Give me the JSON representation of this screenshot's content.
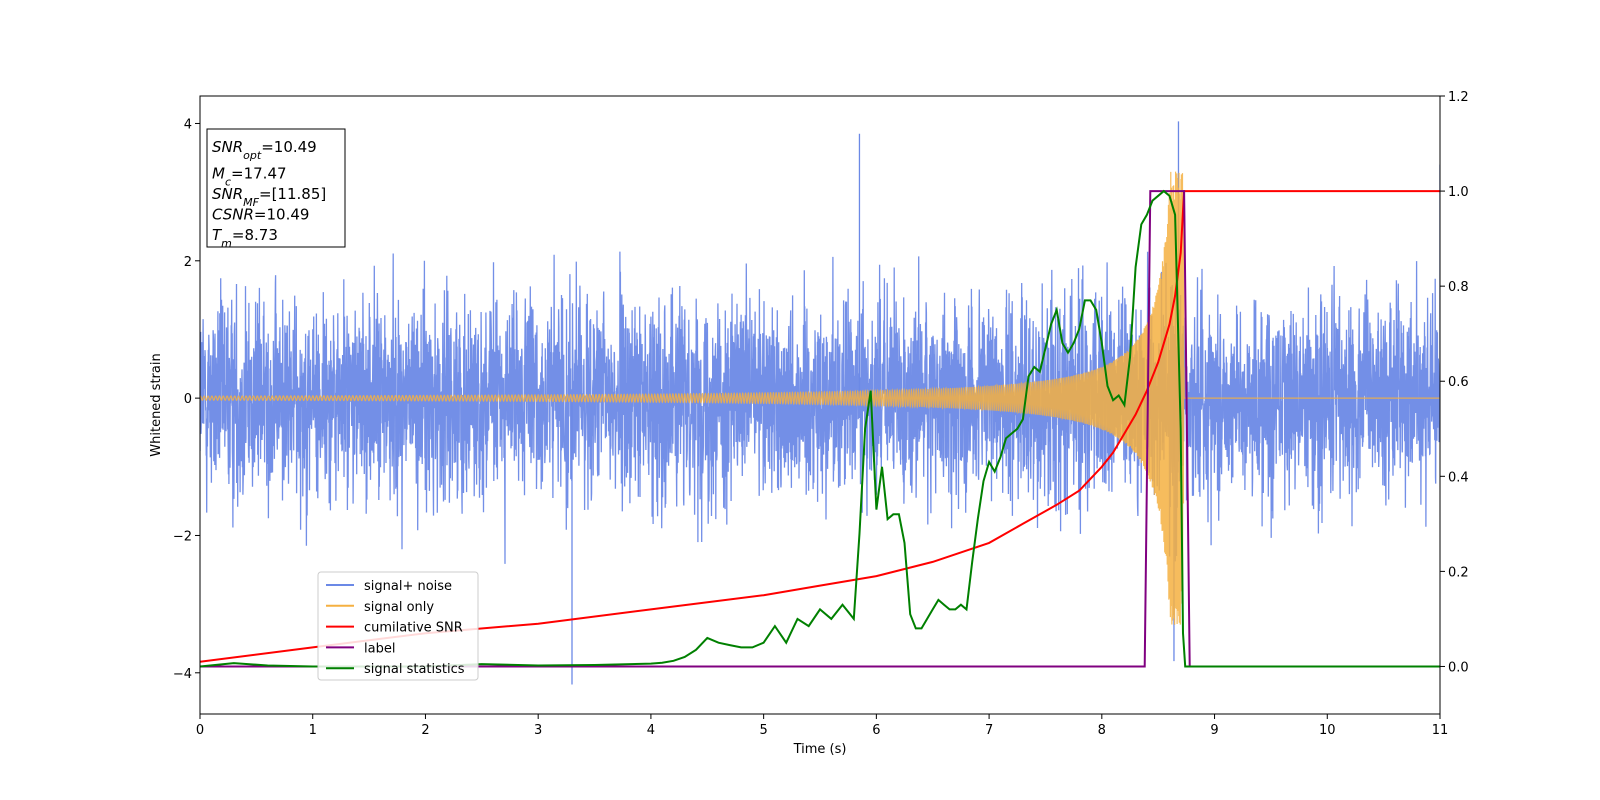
{
  "chart_data": {
    "type": "line",
    "title": "",
    "xlabel": "Time (s)",
    "ylabel": "Whitened strain",
    "y2label": "",
    "xlim": [
      0,
      11
    ],
    "ylim": [
      -4.6,
      4.4
    ],
    "y2lim": [
      -0.1,
      1.2
    ],
    "xticks": [
      0,
      1,
      2,
      3,
      4,
      5,
      6,
      7,
      8,
      9,
      10,
      11
    ],
    "yticks": [
      -4,
      -2,
      0,
      2,
      4
    ],
    "y2ticks": [
      0.0,
      0.2,
      0.4,
      0.6,
      0.8,
      1.0,
      1.2
    ],
    "grid": false,
    "legend_position": "lower-left",
    "info_box": {
      "position": "top-left",
      "lines": [
        {
          "sym": "SNR",
          "sub": "opt",
          "val": "=10.49"
        },
        {
          "sym": "M",
          "sub": "c",
          "val": "=17.47"
        },
        {
          "sym": "SNR",
          "sub": "MF",
          "val": "=[11.85]"
        },
        {
          "sym": "CSNR",
          "sub": "",
          "val": "=10.49"
        },
        {
          "sym": "T",
          "sub": "m",
          "val": "=8.73"
        }
      ]
    },
    "series": [
      {
        "name": "signal+ noise",
        "color": "#6b89e6",
        "axis": "left",
        "kind": "noise",
        "t_range": [
          0,
          11
        ],
        "approx_std": 1.0,
        "approx_extremes": [
          -4.17,
          4.03
        ]
      },
      {
        "name": "signal only",
        "color": "#f5b041",
        "axis": "left",
        "kind": "chirp",
        "t_range": [
          0,
          8.73
        ],
        "amplitude_at_start": 0.03,
        "amplitude_at_merger": 3.3,
        "merger_time": 8.73
      },
      {
        "name": "cumilative SNR",
        "color": "#ff0000",
        "axis": "right",
        "x": [
          0,
          1,
          2,
          3,
          4,
          5,
          5.5,
          6,
          6.5,
          7,
          7.3,
          7.6,
          7.8,
          8.0,
          8.1,
          8.2,
          8.3,
          8.4,
          8.5,
          8.6,
          8.65,
          8.7,
          8.73,
          8.75,
          11
        ],
        "y": [
          0.01,
          0.04,
          0.07,
          0.09,
          0.12,
          0.15,
          0.17,
          0.19,
          0.22,
          0.26,
          0.3,
          0.34,
          0.37,
          0.42,
          0.45,
          0.49,
          0.53,
          0.58,
          0.64,
          0.72,
          0.78,
          0.87,
          1.0,
          1.0,
          1.0
        ]
      },
      {
        "name": "label",
        "color": "#800080",
        "axis": "right",
        "x": [
          0,
          8.38,
          8.43,
          8.73,
          8.78,
          11
        ],
        "y": [
          0,
          0,
          1,
          1,
          0,
          0
        ]
      },
      {
        "name": "signal statistics",
        "color": "#008000",
        "axis": "right",
        "x": [
          0,
          0.3,
          0.6,
          1,
          2,
          2.5,
          3,
          3.5,
          4,
          4.1,
          4.2,
          4.3,
          4.4,
          4.5,
          4.6,
          4.7,
          4.8,
          4.9,
          5.0,
          5.1,
          5.2,
          5.3,
          5.4,
          5.5,
          5.6,
          5.7,
          5.8,
          5.85,
          5.9,
          5.95,
          6.0,
          6.05,
          6.1,
          6.15,
          6.2,
          6.25,
          6.3,
          6.35,
          6.4,
          6.5,
          6.55,
          6.6,
          6.65,
          6.7,
          6.75,
          6.8,
          6.85,
          6.9,
          6.95,
          7.0,
          7.05,
          7.1,
          7.15,
          7.2,
          7.25,
          7.3,
          7.35,
          7.4,
          7.45,
          7.5,
          7.55,
          7.6,
          7.65,
          7.7,
          7.75,
          7.8,
          7.85,
          7.9,
          7.95,
          8.0,
          8.05,
          8.1,
          8.15,
          8.2,
          8.25,
          8.3,
          8.35,
          8.4,
          8.45,
          8.5,
          8.55,
          8.6,
          8.65,
          8.7,
          8.72,
          8.74,
          8.78,
          8.85,
          9,
          11
        ],
        "y": [
          0.0,
          0.007,
          0.002,
          0.0,
          0.0,
          0.005,
          0.002,
          0.003,
          0.006,
          0.008,
          0.012,
          0.02,
          0.035,
          0.06,
          0.05,
          0.045,
          0.04,
          0.04,
          0.05,
          0.085,
          0.05,
          0.1,
          0.085,
          0.12,
          0.1,
          0.13,
          0.1,
          0.28,
          0.5,
          0.58,
          0.33,
          0.42,
          0.31,
          0.32,
          0.32,
          0.26,
          0.11,
          0.08,
          0.08,
          0.12,
          0.14,
          0.13,
          0.12,
          0.12,
          0.13,
          0.12,
          0.22,
          0.31,
          0.39,
          0.43,
          0.41,
          0.44,
          0.48,
          0.49,
          0.5,
          0.52,
          0.61,
          0.63,
          0.62,
          0.67,
          0.72,
          0.75,
          0.68,
          0.66,
          0.68,
          0.71,
          0.77,
          0.77,
          0.75,
          0.68,
          0.59,
          0.56,
          0.57,
          0.55,
          0.65,
          0.84,
          0.93,
          0.95,
          0.98,
          0.99,
          1.0,
          0.99,
          0.95,
          0.5,
          0.07,
          0.0,
          0.0,
          0.0,
          0.0,
          0.0
        ]
      }
    ]
  }
}
